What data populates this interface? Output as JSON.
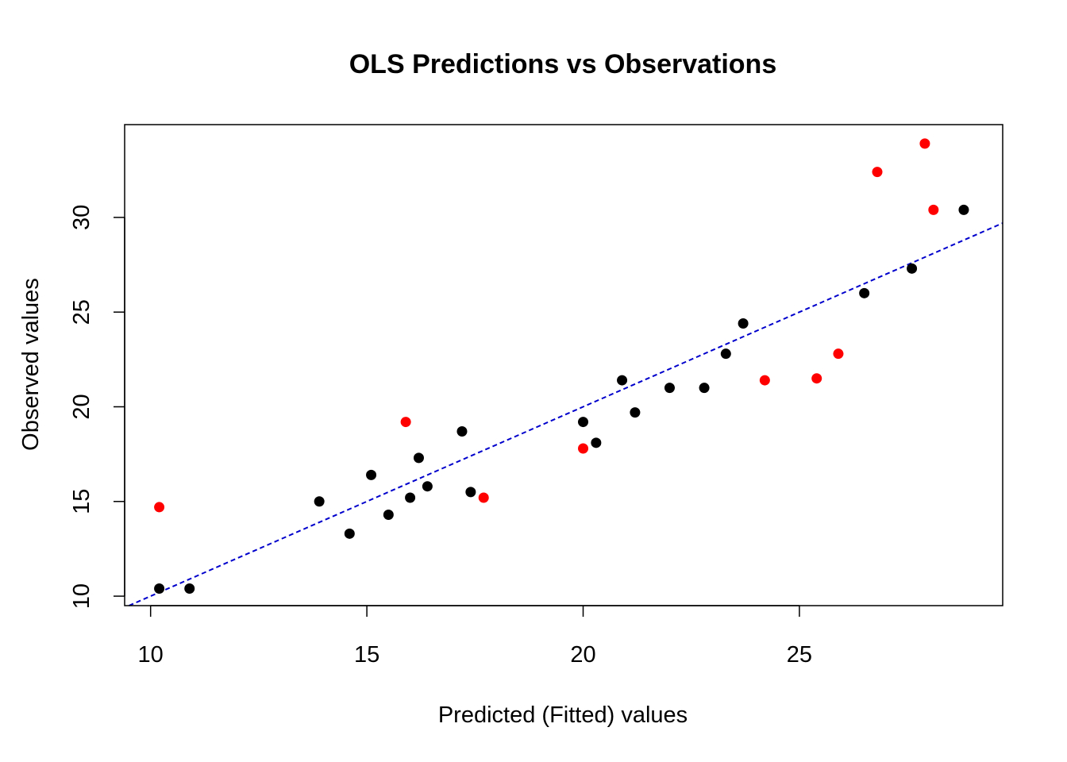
{
  "colors": {
    "black_points": "#000000",
    "red_points": "#ff0000",
    "reference_line": "#0000cc",
    "frame": "#000000"
  },
  "chart_data": {
    "type": "scatter",
    "title": "OLS Predictions vs Observations",
    "xlabel": "Predicted (Fitted) values",
    "ylabel": "Observed values",
    "xlim": [
      9.4,
      29.7
    ],
    "ylim": [
      9.5,
      34.9
    ],
    "xticks": [
      10,
      15,
      20,
      25
    ],
    "yticks": [
      10,
      15,
      20,
      25,
      30
    ],
    "grid": false,
    "legend": "none",
    "reference_line": {
      "slope": 1,
      "intercept": 0,
      "style": "dashed"
    },
    "series": [
      {
        "color": "#000000",
        "points": [
          [
            10.2,
            10.4
          ],
          [
            10.9,
            10.4
          ],
          [
            13.9,
            15.0
          ],
          [
            14.6,
            13.3
          ],
          [
            15.1,
            16.4
          ],
          [
            15.5,
            14.3
          ],
          [
            16.0,
            15.2
          ],
          [
            16.2,
            17.3
          ],
          [
            16.4,
            15.8
          ],
          [
            17.2,
            18.7
          ],
          [
            17.4,
            15.5
          ],
          [
            20.0,
            19.2
          ],
          [
            20.3,
            18.1
          ],
          [
            20.9,
            21.4
          ],
          [
            21.2,
            19.7
          ],
          [
            22.0,
            21.0
          ],
          [
            22.8,
            21.0
          ],
          [
            23.3,
            22.8
          ],
          [
            23.7,
            24.4
          ],
          [
            26.5,
            26.0
          ],
          [
            27.6,
            27.3
          ],
          [
            28.8,
            30.4
          ]
        ]
      },
      {
        "color": "#ff0000",
        "points": [
          [
            10.2,
            14.7
          ],
          [
            15.9,
            19.2
          ],
          [
            17.7,
            15.2
          ],
          [
            20.0,
            17.8
          ],
          [
            24.2,
            21.4
          ],
          [
            25.4,
            21.5
          ],
          [
            25.9,
            22.8
          ],
          [
            26.8,
            32.4
          ],
          [
            27.9,
            33.9
          ],
          [
            28.1,
            30.4
          ]
        ]
      }
    ]
  }
}
